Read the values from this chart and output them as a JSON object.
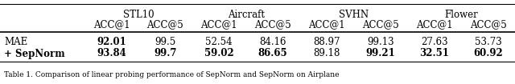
{
  "groups": [
    "STL10",
    "Aircraft",
    "SVHN",
    "Flower"
  ],
  "row_labels": [
    "MAE",
    "+ SepNorm"
  ],
  "row_bold": [
    false,
    true
  ],
  "values": [
    [
      "92.01",
      "99.5",
      "52.54",
      "84.16",
      "88.97",
      "99.13",
      "27.63",
      "53.73"
    ],
    [
      "93.84",
      "99.7",
      "59.02",
      "86.65",
      "89.18",
      "99.21",
      "32.51",
      "60.92"
    ]
  ],
  "bold_values": [
    [
      true,
      false,
      false,
      false,
      false,
      false,
      false,
      false
    ],
    [
      true,
      true,
      true,
      true,
      false,
      true,
      true,
      true
    ]
  ],
  "background_color": "#ffffff",
  "font_size": 8.5,
  "caption": "Table 1. Comparison of linear probing performance of SepNorm and SepNorm on Airplane"
}
